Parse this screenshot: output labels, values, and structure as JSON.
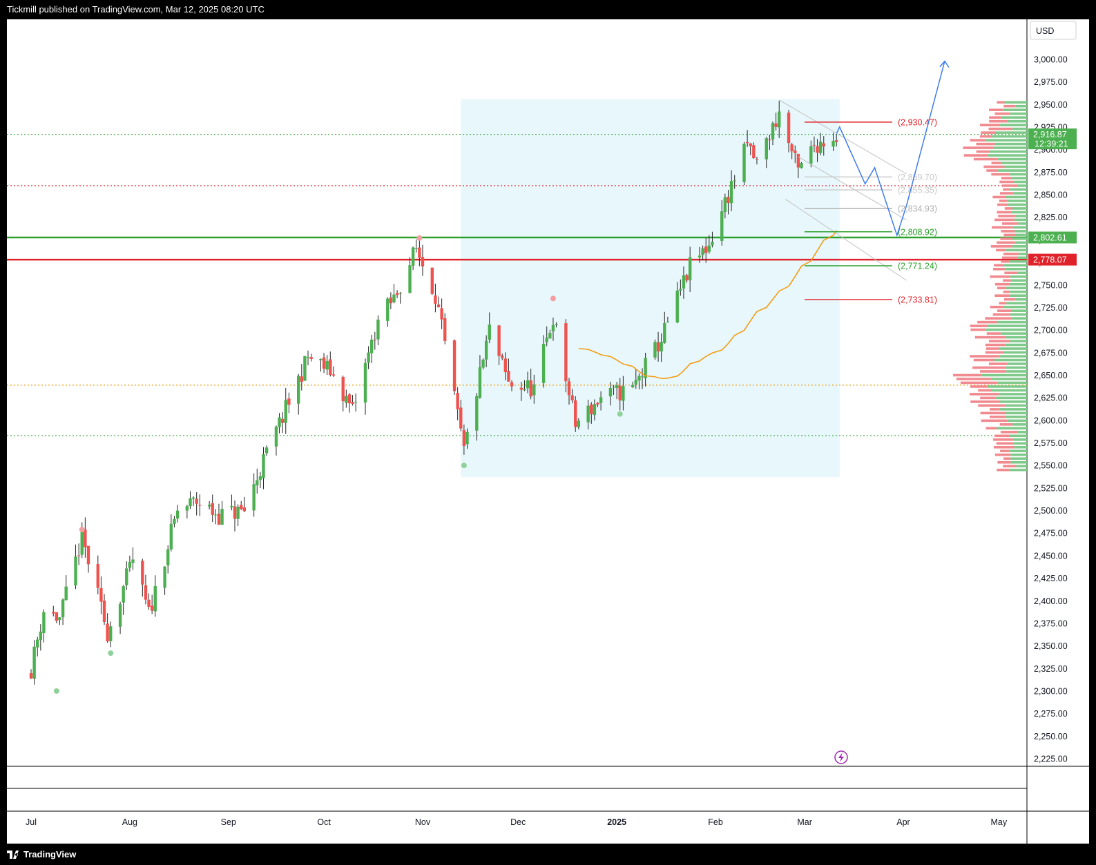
{
  "header": {
    "publisher_line": "Tickmill published on TradingView.com, Mar 12, 2025 08:20 UTC"
  },
  "footer": {
    "brand": "TradingView"
  },
  "currency": "USD",
  "colors": {
    "up": "#4caf50",
    "down": "#ef5350",
    "ma": "#f39c12",
    "projection": "#3d7bf0",
    "zone_fill": "#e8f7fb",
    "support": "#2ca02c",
    "resistance": "#e0232a"
  },
  "chart_data": {
    "type": "candlestick",
    "y_axis": {
      "min": 2225,
      "max": 3000,
      "ticks": [
        "2,225.00",
        "2,250.00",
        "2,275.00",
        "2,300.00",
        "2,325.00",
        "2,350.00",
        "2,375.00",
        "2,400.00",
        "2,425.00",
        "2,450.00",
        "2,475.00",
        "2,500.00",
        "2,525.00",
        "2,550.00",
        "2,575.00",
        "2,600.00",
        "2,625.00",
        "2,650.00",
        "2,675.00",
        "2,700.00",
        "2,725.00",
        "2,750.00",
        "2,775.00",
        "2,800.00",
        "2,825.00",
        "2,850.00",
        "2,875.00",
        "2,900.00",
        "2,925.00",
        "2,950.00",
        "2,975.00",
        "3,000.00"
      ]
    },
    "x_axis": {
      "labels": [
        {
          "label": "Jul",
          "date": "2024-07-01",
          "bold": false
        },
        {
          "label": "Aug",
          "date": "2024-08-01",
          "bold": false
        },
        {
          "label": "Sep",
          "date": "2024-09-01",
          "bold": false
        },
        {
          "label": "Oct",
          "date": "2024-10-01",
          "bold": false
        },
        {
          "label": "Nov",
          "date": "2024-11-01",
          "bold": false
        },
        {
          "label": "Dec",
          "date": "2024-12-01",
          "bold": false
        },
        {
          "label": "2025",
          "date": "2025-01-01",
          "bold": true
        },
        {
          "label": "Feb",
          "date": "2025-02-01",
          "bold": false
        },
        {
          "label": "Mar",
          "date": "2025-03-01",
          "bold": false
        },
        {
          "label": "Apr",
          "date": "2025-04-01",
          "bold": false
        },
        {
          "label": "May",
          "date": "2025-05-01",
          "bold": false
        }
      ]
    },
    "price_badges": [
      {
        "value": "2,916.87",
        "sub": "12:39:21",
        "color": "#4caf50"
      },
      {
        "value": "2,802.61",
        "color": "#4caf50"
      },
      {
        "value": "2,778.07",
        "color": "#e0232a"
      }
    ],
    "horizontal_lines": [
      {
        "price": 2802.61,
        "color": "#2ca02c",
        "style": "solid"
      },
      {
        "price": 2778.07,
        "color": "#e0232a",
        "style": "solid"
      },
      {
        "price": 2916.87,
        "color": "#4caf50",
        "style": "dotted"
      },
      {
        "price": 2860,
        "color": "#e0232a",
        "style": "dotted"
      },
      {
        "price": 2639,
        "color": "#f39c12",
        "style": "dotted"
      },
      {
        "price": 2583,
        "color": "#2ca02c",
        "style": "dotted"
      }
    ],
    "level_labels": [
      {
        "text": "(2,930.47)",
        "price": 2930.47,
        "color": "#e0232a"
      },
      {
        "text": "(2,869.70)",
        "price": 2869.7,
        "color": "#c8c8c8"
      },
      {
        "text": "(2,855.35)",
        "price": 2855.35,
        "color": "#c8c8c8"
      },
      {
        "text": "(2,834.93)",
        "price": 2834.93,
        "color": "#b0b0b0"
      },
      {
        "text": "(2,808.92)",
        "price": 2808.92,
        "color": "#2ca02c"
      },
      {
        "text": "(2,771.24)",
        "price": 2771.24,
        "color": "#2ca02c"
      },
      {
        "text": "(2,733.81)",
        "price": 2733.81,
        "color": "#e0232a"
      }
    ],
    "zone": {
      "start": "2024-11-13",
      "end": "2025-03-12",
      "high": 2956,
      "low": 2537
    },
    "projection_path": [
      {
        "date": "2025-03-11",
        "price": 2918
      },
      {
        "date": "2025-03-12",
        "price": 2925
      },
      {
        "date": "2025-03-20",
        "price": 2862
      },
      {
        "date": "2025-03-23",
        "price": 2880
      },
      {
        "date": "2025-03-30",
        "price": 2805
      },
      {
        "date": "2025-04-02",
        "price": 2838
      },
      {
        "date": "2025-04-14",
        "price": 2998
      }
    ],
    "pivot_markers": [
      {
        "date": "2024-07-09",
        "price": 2300,
        "type": "low"
      },
      {
        "date": "2024-07-26",
        "price": 2342,
        "type": "low"
      },
      {
        "date": "2024-07-17",
        "price": 2479,
        "type": "high"
      },
      {
        "date": "2024-10-31",
        "price": 2802,
        "type": "high"
      },
      {
        "date": "2024-11-14",
        "price": 2550,
        "type": "low"
      },
      {
        "date": "2024-12-12",
        "price": 2735,
        "type": "high"
      },
      {
        "date": "2025-01-02",
        "price": 2607,
        "type": "low"
      }
    ]
  }
}
